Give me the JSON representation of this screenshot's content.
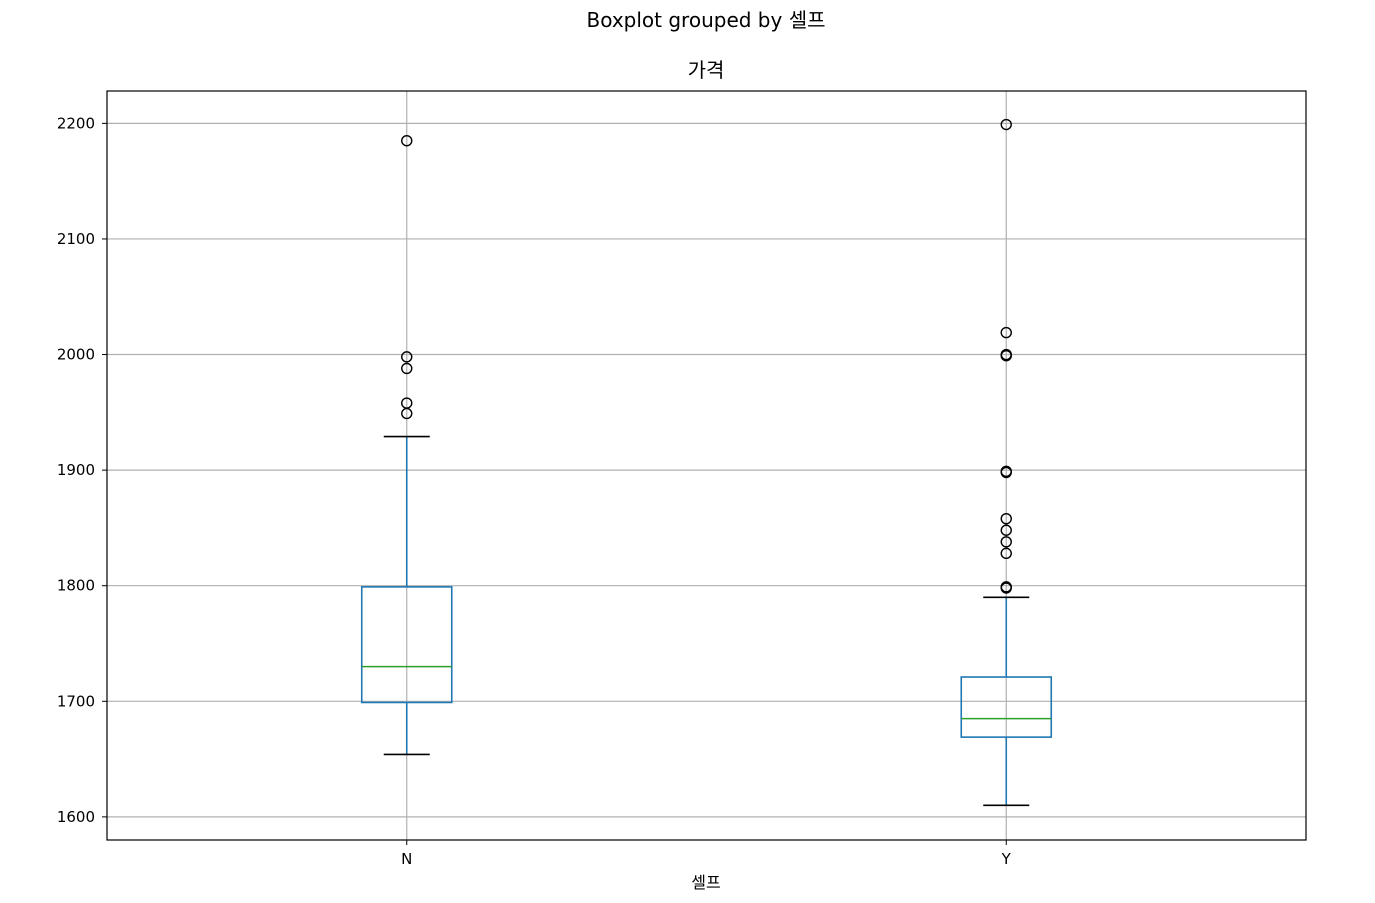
{
  "chart_data": {
    "type": "boxplot",
    "suptitle": "Boxplot grouped by 셀프",
    "title": "가격",
    "xlabel": "셀프",
    "ylabel": "",
    "ylim": [
      1580,
      2228
    ],
    "yticks": [
      1600,
      1700,
      1800,
      1900,
      2000,
      2100,
      2200
    ],
    "grid": true,
    "categories": [
      "N",
      "Y"
    ],
    "boxes": [
      {
        "category": "N",
        "whisker_low": 1654,
        "q1": 1699,
        "median": 1730,
        "q3": 1799,
        "whisker_high": 1929,
        "fliers": [
          1949,
          1958,
          1988,
          1998,
          2185
        ]
      },
      {
        "category": "Y",
        "whisker_low": 1610,
        "q1": 1669,
        "median": 1685,
        "q3": 1721,
        "whisker_high": 1790,
        "fliers": [
          1798,
          1799,
          1828,
          1838,
          1848,
          1858,
          1898,
          1899,
          1999,
          2000,
          2019,
          2199
        ]
      }
    ]
  }
}
